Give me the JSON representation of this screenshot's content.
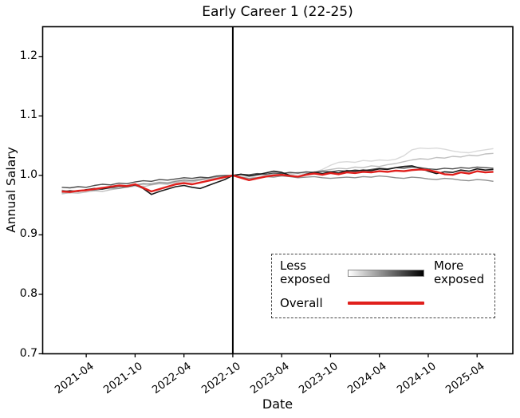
{
  "chart_data": {
    "type": "line",
    "title": "Early Career 1 (22-25)",
    "xlabel": "Date",
    "ylabel": "Annual Salary",
    "ylim": [
      0.7,
      1.25
    ],
    "grid": false,
    "x_start_month": "2021-01",
    "x_end_month": "2025-06",
    "x_tick_labels": [
      "2021-04",
      "2021-10",
      "2022-04",
      "2022-10",
      "2023-04",
      "2023-10",
      "2024-04",
      "2024-10",
      "2025-04"
    ],
    "x_tick_indices": [
      3,
      9,
      15,
      21,
      27,
      33,
      39,
      45,
      51
    ],
    "y_tick_labels": [
      "0.7",
      "0.8",
      "0.9",
      "1.0",
      "1.1",
      "1.2"
    ],
    "y_tick_values": [
      0.7,
      0.8,
      0.9,
      1.0,
      1.1,
      1.2
    ],
    "vline_at_label": "2022-10",
    "vline_index": 21,
    "axis_color": "#000000",
    "series": [
      {
        "name": "least-exposed-quintile-1",
        "color": "#d9d9d9",
        "width": 1.4,
        "values": [
          0.971,
          0.97,
          0.973,
          0.974,
          0.976,
          0.978,
          0.977,
          0.98,
          0.983,
          0.985,
          0.984,
          0.987,
          0.989,
          0.988,
          0.991,
          0.993,
          0.992,
          0.995,
          0.994,
          0.997,
          0.999,
          1.0,
          0.999,
          0.998,
          0.997,
          0.999,
          1.0,
          1.002,
          1.001,
          1.003,
          1.002,
          1.005,
          1.01,
          1.017,
          1.022,
          1.023,
          1.022,
          1.025,
          1.024,
          1.026,
          1.025,
          1.027,
          1.033,
          1.043,
          1.046,
          1.045,
          1.046,
          1.044,
          1.041,
          1.039,
          1.038,
          1.041,
          1.043,
          1.045
        ]
      },
      {
        "name": "less-exposed-quintile-2",
        "color": "#bfbfbf",
        "width": 1.4,
        "values": [
          0.969,
          0.971,
          0.97,
          0.972,
          0.974,
          0.973,
          0.976,
          0.978,
          0.98,
          0.982,
          0.981,
          0.984,
          0.986,
          0.985,
          0.988,
          0.99,
          0.989,
          0.992,
          0.994,
          0.996,
          0.998,
          1.0,
          1.001,
          0.999,
          1.001,
          1.0,
          1.002,
          1.004,
          1.003,
          1.005,
          1.004,
          1.006,
          1.008,
          1.01,
          1.012,
          1.011,
          1.014,
          1.013,
          1.016,
          1.015,
          1.018,
          1.02,
          1.023,
          1.026,
          1.028,
          1.027,
          1.03,
          1.029,
          1.032,
          1.031,
          1.034,
          1.033,
          1.036,
          1.037
        ]
      },
      {
        "name": "middle-exposed-quintile-3",
        "color": "#8f8f8f",
        "width": 1.4,
        "values": [
          0.975,
          0.973,
          0.974,
          0.976,
          0.975,
          0.977,
          0.979,
          0.978,
          0.981,
          0.984,
          0.986,
          0.985,
          0.988,
          0.987,
          0.99,
          0.992,
          0.991,
          0.993,
          0.996,
          0.998,
          0.999,
          1.0,
          0.997,
          0.995,
          0.996,
          0.998,
          0.997,
          0.999,
          0.998,
          0.996,
          0.997,
          0.998,
          0.996,
          0.995,
          0.996,
          0.997,
          0.996,
          0.998,
          0.997,
          0.999,
          0.998,
          0.996,
          0.995,
          0.997,
          0.996,
          0.994,
          0.993,
          0.995,
          0.994,
          0.992,
          0.991,
          0.993,
          0.992,
          0.99
        ]
      },
      {
        "name": "more-exposed-quintile-4",
        "color": "#4d4d4d",
        "width": 1.4,
        "values": [
          0.98,
          0.979,
          0.981,
          0.98,
          0.983,
          0.985,
          0.984,
          0.987,
          0.986,
          0.989,
          0.991,
          0.99,
          0.993,
          0.992,
          0.994,
          0.996,
          0.995,
          0.997,
          0.996,
          0.999,
          1.0,
          1.0,
          1.002,
          1.001,
          1.003,
          1.002,
          1.004,
          1.003,
          1.005,
          1.004,
          1.006,
          1.005,
          1.007,
          1.006,
          1.008,
          1.007,
          1.009,
          1.008,
          1.01,
          1.012,
          1.011,
          1.013,
          1.012,
          1.014,
          1.013,
          1.011,
          1.01,
          1.012,
          1.011,
          1.013,
          1.012,
          1.014,
          1.013,
          1.012
        ]
      },
      {
        "name": "most-exposed-quintile-5",
        "color": "#1a1a1a",
        "width": 1.6,
        "values": [
          0.972,
          0.974,
          0.973,
          0.976,
          0.978,
          0.977,
          0.98,
          0.982,
          0.981,
          0.984,
          0.978,
          0.968,
          0.973,
          0.977,
          0.981,
          0.983,
          0.98,
          0.978,
          0.983,
          0.988,
          0.993,
          1.0,
          1.002,
          0.999,
          1.001,
          1.004,
          1.007,
          1.005,
          1.0,
          0.998,
          1.002,
          1.005,
          1.003,
          1.006,
          1.004,
          1.008,
          1.007,
          1.009,
          1.008,
          1.011,
          1.01,
          1.013,
          1.015,
          1.016,
          1.012,
          1.007,
          1.003,
          1.006,
          1.005,
          1.009,
          1.007,
          1.011,
          1.009,
          1.01
        ]
      },
      {
        "name": "overall",
        "color": "#e01f1c",
        "width": 2.4,
        "values": [
          0.973,
          0.972,
          0.974,
          0.975,
          0.977,
          0.979,
          0.981,
          0.983,
          0.982,
          0.985,
          0.979,
          0.973,
          0.977,
          0.981,
          0.985,
          0.987,
          0.985,
          0.988,
          0.991,
          0.994,
          0.997,
          1.0,
          0.996,
          0.992,
          0.995,
          0.998,
          1.0,
          1.001,
          0.999,
          0.998,
          1.001,
          1.003,
          1.001,
          1.004,
          1.002,
          1.005,
          1.004,
          1.006,
          1.005,
          1.007,
          1.006,
          1.008,
          1.007,
          1.009,
          1.01,
          1.009,
          1.006,
          1.002,
          1.001,
          1.005,
          1.003,
          1.007,
          1.005,
          1.006
        ]
      }
    ],
    "legend": {
      "position": "lower-right-inside",
      "border_style": "dashed",
      "less_label": "Less\nexposed",
      "more_label": "More\nexposed",
      "overall_label": "Overall",
      "gradient_from": "#ffffff",
      "gradient_to": "#000000",
      "overall_color": "#e01f1c"
    }
  }
}
